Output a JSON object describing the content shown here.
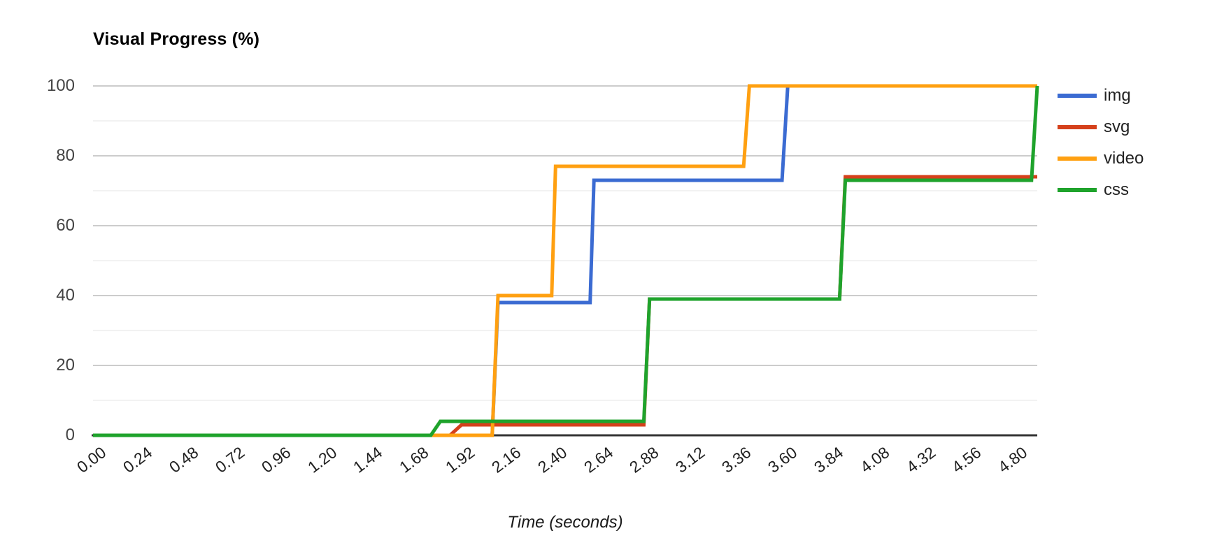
{
  "chart_data": {
    "type": "line",
    "subtype": "step-progress",
    "title": "Visual Progress (%)",
    "xlabel": "Time (seconds)",
    "ylabel": "Visual Progress (%)",
    "xlim": [
      0,
      4.92
    ],
    "ylim": [
      0,
      100
    ],
    "x_tick_labels": [
      "0.00",
      "0.24",
      "0.48",
      "0.72",
      "0.96",
      "1.20",
      "1.44",
      "1.68",
      "1.92",
      "2.16",
      "2.40",
      "2.64",
      "2.88",
      "3.12",
      "3.36",
      "3.60",
      "3.84",
      "4.08",
      "4.32",
      "4.56",
      "4.80"
    ],
    "x_tick_values": [
      0,
      0.24,
      0.48,
      0.72,
      0.96,
      1.2,
      1.44,
      1.68,
      1.92,
      2.16,
      2.4,
      2.64,
      2.88,
      3.12,
      3.36,
      3.6,
      3.84,
      4.08,
      4.32,
      4.56,
      4.8
    ],
    "y_major_ticks": [
      0,
      20,
      40,
      60,
      80,
      100
    ],
    "y_minor_ticks": [
      10,
      30,
      50,
      70,
      90
    ],
    "grid": true,
    "legend_position": "right",
    "colors": {
      "major_gridline": "#cccccc",
      "minor_gridline": "#f2f2f2",
      "axis_baseline": "#333333"
    },
    "series": [
      {
        "name": "img",
        "color": "#3b6bd2",
        "points": [
          [
            0,
            0
          ],
          [
            2.08,
            0
          ],
          [
            2.11,
            38
          ],
          [
            2.59,
            38
          ],
          [
            2.61,
            73
          ],
          [
            3.59,
            73
          ],
          [
            3.62,
            100
          ],
          [
            4.92,
            100
          ]
        ]
      },
      {
        "name": "svg",
        "color": "#d5401b",
        "points": [
          [
            0,
            0
          ],
          [
            1.86,
            0
          ],
          [
            1.92,
            3
          ],
          [
            2.87,
            3
          ],
          [
            2.9,
            39
          ],
          [
            3.89,
            39
          ],
          [
            3.92,
            74
          ],
          [
            4.92,
            74
          ]
        ]
      },
      {
        "name": "video",
        "color": "#ffa011",
        "points": [
          [
            0,
            0
          ],
          [
            2.08,
            0
          ],
          [
            2.11,
            40
          ],
          [
            2.39,
            40
          ],
          [
            2.41,
            77
          ],
          [
            3.39,
            77
          ],
          [
            3.42,
            100
          ],
          [
            4.92,
            100
          ]
        ]
      },
      {
        "name": "css",
        "color": "#1fa32c",
        "points": [
          [
            0,
            0
          ],
          [
            1.76,
            0
          ],
          [
            1.81,
            4
          ],
          [
            2.87,
            4
          ],
          [
            2.9,
            39
          ],
          [
            3.89,
            39
          ],
          [
            3.92,
            73
          ],
          [
            4.89,
            73
          ],
          [
            4.92,
            100
          ]
        ]
      }
    ]
  }
}
